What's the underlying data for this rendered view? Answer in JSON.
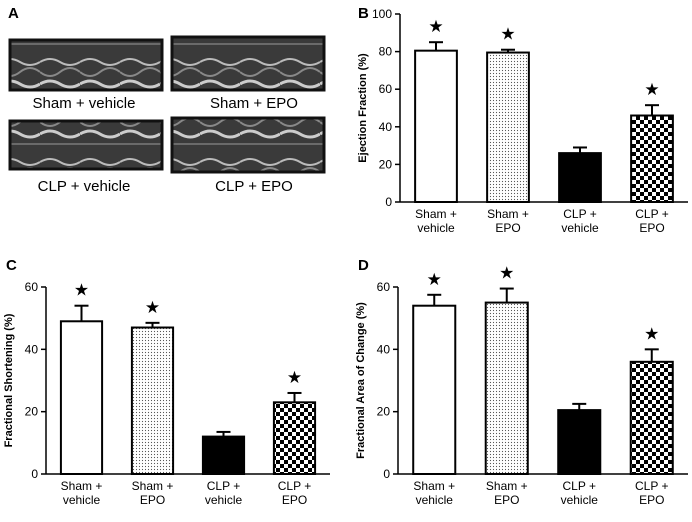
{
  "panel_a": {
    "panel_label": "A",
    "images": [
      {
        "label": "Sham + vehicle"
      },
      {
        "label": "Sham + EPO"
      },
      {
        "label": "CLP + vehicle"
      },
      {
        "label": "CLP + EPO"
      }
    ]
  },
  "chart_data": [
    {
      "type": "bar",
      "panel_label": "B",
      "y_label": "Ejection Fraction (%)",
      "categories": [
        "Sham +\nvehicle",
        "Sham +\nEPO",
        "CLP +\nvehicle",
        "CLP +\nEPO"
      ],
      "values": [
        80.5,
        79.5,
        26,
        46
      ],
      "errors": [
        4.5,
        1.5,
        3,
        5.5
      ],
      "stars": [
        "★",
        "★",
        null,
        "★"
      ],
      "fills": [
        "white",
        "dots",
        "black",
        "checker"
      ],
      "ylim": [
        0,
        100
      ],
      "yticks": [
        0,
        20,
        40,
        60,
        80,
        100
      ]
    },
    {
      "type": "bar",
      "panel_label": "C",
      "y_label": "Fractional Shortening (%)",
      "categories": [
        "Sham +\nvehicle",
        "Sham +\nEPO",
        "CLP +\nvehicle",
        "CLP +\nEPO"
      ],
      "values": [
        49,
        47,
        12,
        23
      ],
      "errors": [
        5,
        1.5,
        1.5,
        3
      ],
      "stars": [
        "★",
        "★",
        null,
        "★"
      ],
      "fills": [
        "white",
        "dots",
        "black",
        "checker"
      ],
      "ylim": [
        0,
        60
      ],
      "yticks": [
        0,
        20,
        40,
        60
      ]
    },
    {
      "type": "bar",
      "panel_label": "D",
      "y_label": "Fractional Area of Change (%)",
      "categories": [
        "Sham +\nvehicle",
        "Sham +\nEPO",
        "CLP +\nvehicle",
        "CLP +\nEPO"
      ],
      "values": [
        54,
        55,
        20.5,
        36
      ],
      "errors": [
        3.5,
        4.5,
        2,
        4
      ],
      "stars": [
        "★",
        "★",
        null,
        "★"
      ],
      "fills": [
        "white",
        "dots",
        "black",
        "checker"
      ],
      "ylim": [
        0,
        60
      ],
      "yticks": [
        0,
        20,
        40,
        60
      ]
    }
  ]
}
